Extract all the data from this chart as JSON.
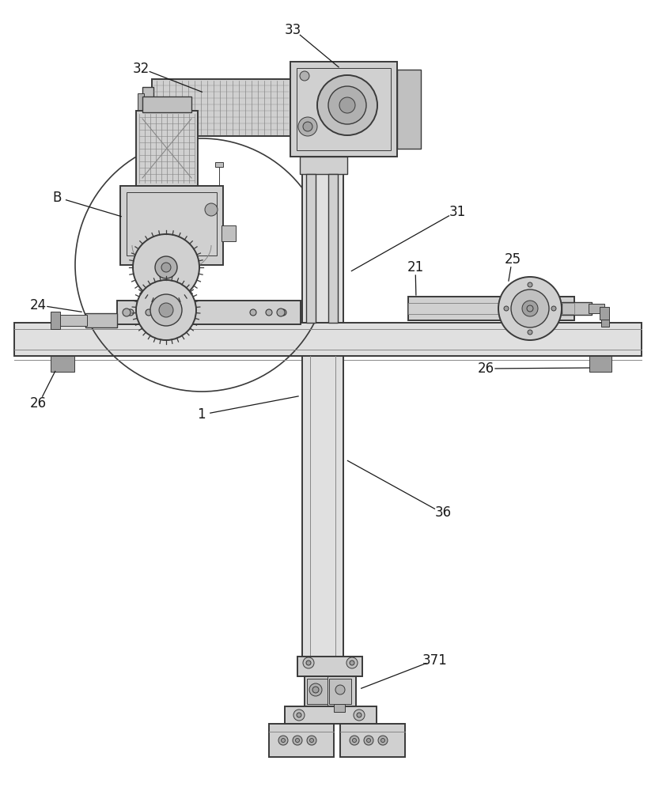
{
  "bg": "#ffffff",
  "lc": "#3a3a3a",
  "lc2": "#555555",
  "mg": "#888888",
  "fc0": "#f0f0f0",
  "fc1": "#e0e0e0",
  "fc2": "#d0d0d0",
  "fc3": "#c0c0c0",
  "fc4": "#b0b0b0",
  "fc5": "#a0a0a0",
  "fc6": "#909090",
  "lbl_fs": 12,
  "lbl_color": "#1a1a1a"
}
